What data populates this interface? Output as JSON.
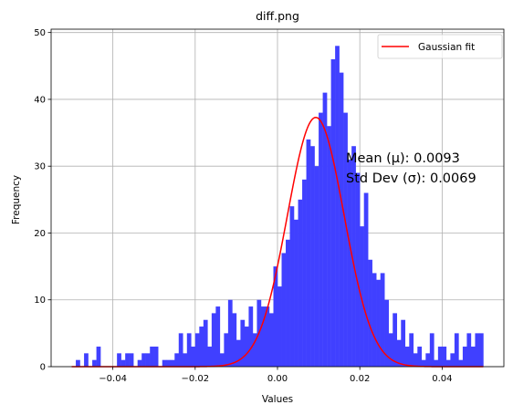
{
  "chart_data": {
    "type": "bar",
    "title": "diff.png",
    "xlabel": "Values",
    "ylabel": "Frequency",
    "xlim": [
      -0.055,
      0.055
    ],
    "ylim": [
      0,
      50.5
    ],
    "xticks": [
      -0.04,
      -0.02,
      0.0,
      0.02,
      0.04
    ],
    "xtick_labels": [
      "−0.04",
      "−0.02",
      "0.00",
      "0.02",
      "0.04"
    ],
    "yticks": [
      0,
      10,
      20,
      30,
      40,
      50
    ],
    "ytick_labels": [
      "0",
      "10",
      "20",
      "30",
      "40",
      "50"
    ],
    "grid": true,
    "bin_start": -0.05,
    "bin_width": 0.001,
    "bar_color": "#4040ff",
    "histogram_counts": [
      0,
      1,
      0,
      2,
      0,
      1,
      3,
      0,
      0,
      0,
      0,
      2,
      1,
      2,
      2,
      0,
      1,
      2,
      2,
      3,
      3,
      0,
      1,
      1,
      1,
      2,
      5,
      2,
      5,
      3,
      5,
      6,
      7,
      3,
      8,
      9,
      2,
      5,
      10,
      8,
      4,
      7,
      6,
      9,
      5,
      10,
      9,
      9,
      8,
      15,
      12,
      17,
      19,
      24,
      22,
      25,
      28,
      34,
      33,
      30,
      38,
      41,
      36,
      46,
      48,
      44,
      38,
      31,
      33,
      29,
      21,
      26,
      16,
      14,
      13,
      14,
      10,
      5,
      8,
      4,
      7,
      3,
      5,
      2,
      3,
      1,
      2,
      5,
      1,
      3,
      3,
      1,
      2,
      5,
      1,
      3,
      5,
      3,
      5,
      5
    ],
    "annotation_lines": [
      "Mean (μ): 0.0093",
      "Std Dev (σ): 0.0069"
    ],
    "legend": {
      "position": "top-right",
      "entries": [
        {
          "name": "Gaussian fit",
          "color": "#ff0000"
        }
      ]
    },
    "gaussian_fit": {
      "mean": 0.0093,
      "std": 0.0069,
      "peak": 37.3,
      "color": "#ff0000"
    }
  }
}
